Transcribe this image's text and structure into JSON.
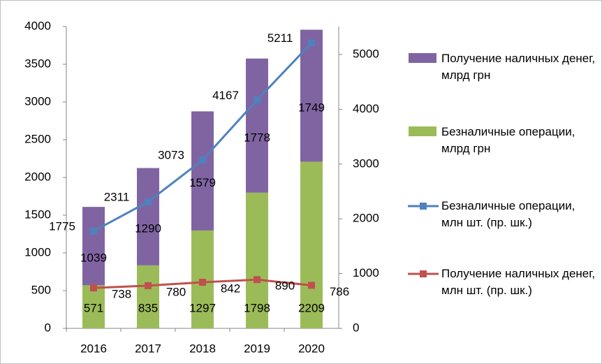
{
  "chart_data": {
    "type": "bar",
    "categories": [
      "2016",
      "2017",
      "2018",
      "2019",
      "2020"
    ],
    "series": [
      {
        "name": "Получение наличных денег, млрд грн",
        "type": "bar",
        "color": "#8064a2",
        "values": [
          1039,
          1290,
          1579,
          1778,
          1749
        ]
      },
      {
        "name": "Безналичные операции, млрд грн",
        "type": "bar",
        "color": "#9bbb59",
        "values": [
          571,
          835,
          1297,
          1798,
          2209
        ]
      },
      {
        "name": "Безналичные операции, млн шт. (пр. шк.)",
        "type": "line",
        "axis": "y2",
        "color": "#4f81bd",
        "values": [
          1775,
          2311,
          3073,
          4167,
          5211
        ]
      },
      {
        "name": "Получение наличных денег, млн шт. (пр. шк.)",
        "type": "line",
        "axis": "y2",
        "color": "#c0504d",
        "values": [
          738,
          780,
          842,
          890,
          786
        ]
      }
    ],
    "ylim": [
      0,
      4000
    ],
    "yticks": [
      0,
      500,
      1000,
      1500,
      2000,
      2500,
      3000,
      3500,
      4000
    ],
    "y2lim": [
      0,
      5510
    ],
    "y2ticks": [
      0,
      1000,
      2000,
      3000,
      4000,
      5000
    ],
    "stacked": true,
    "legend": "right"
  }
}
